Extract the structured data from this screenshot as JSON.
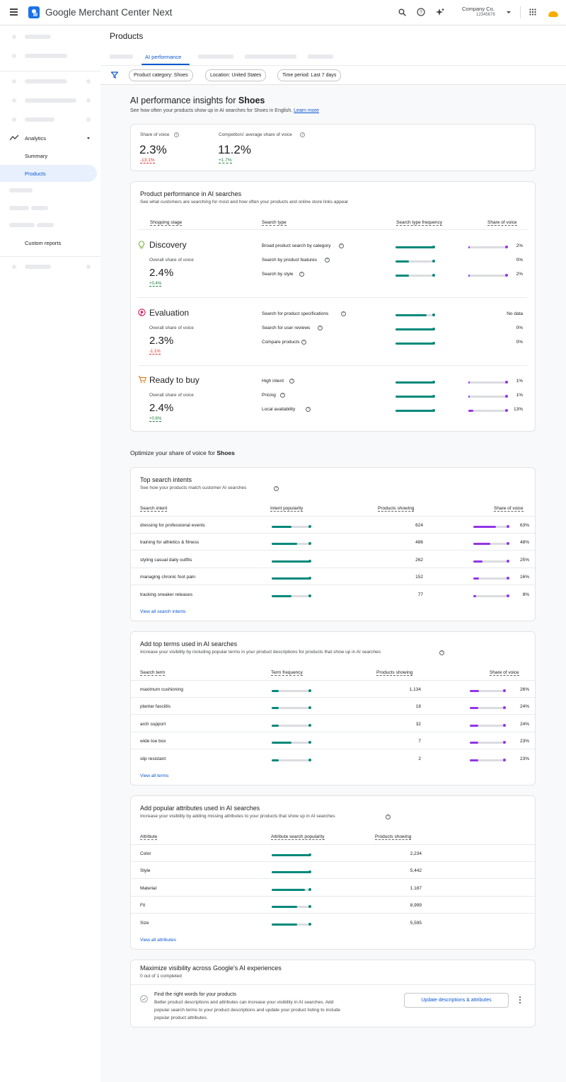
{
  "header": {
    "app_name": "Google Merchant Center Next",
    "company": "Company Co.",
    "account_id": "12345678"
  },
  "sidebar": {
    "analytics": "Analytics",
    "summary": "Summary",
    "products": "Products",
    "custom_reports": "Custom reports"
  },
  "page": {
    "title": "Products",
    "active_tab": "AI performance"
  },
  "filters": [
    "Product category: Shoes",
    "Location: United States",
    "Time period: Last 7 days"
  ],
  "insights": {
    "title_prefix": "AI performance insights for ",
    "category": "Shoes",
    "subtitle": "See how often your products show up in AI searches for Shoes in English.",
    "learn_more": "Learn more"
  },
  "summary": {
    "sov_label": "Share of voice",
    "sov_value": "2.3%",
    "sov_change": "-13.1%",
    "comp_label": "Competitors' average share of voice",
    "comp_value": "11.2%",
    "comp_change": "+1.7%"
  },
  "performance": {
    "title": "Product performance in AI searches",
    "subtitle": "See what customers are searching for most and how often your products and online store links appear",
    "headers": [
      "Shopping stage",
      "Search type",
      "Search type frequency",
      "Share of voice"
    ],
    "overall_label": "Overall share of voice",
    "stages": [
      {
        "name": "Discovery",
        "icon": "lightbulb-icon",
        "value": "2.4%",
        "change": "+0.4%",
        "rows": [
          {
            "type": "Broad product search by category",
            "freq": 1.0,
            "sov": 0.02,
            "sov_label": "2%"
          },
          {
            "type": "Search by product features",
            "freq": 0.35,
            "sov": null,
            "sov_label": "0%"
          },
          {
            "type": "Search by style",
            "freq": 0.35,
            "sov": 0.02,
            "sov_label": "2%"
          }
        ]
      },
      {
        "name": "Evaluation",
        "icon": "compare-icon",
        "value": "2.3%",
        "change": "-1.1%",
        "rows": [
          {
            "type": "Search for product specifications",
            "freq": 0.8,
            "sov": null,
            "sov_label": "No data"
          },
          {
            "type": "Search for user reviews",
            "freq": 1.0,
            "sov": null,
            "sov_label": "0%"
          },
          {
            "type": "Compare products",
            "freq": 1.0,
            "sov": null,
            "sov_label": "0%"
          }
        ]
      },
      {
        "name": "Ready to buy",
        "icon": "cart-icon",
        "value": "2.4%",
        "change": "+0.6%",
        "rows": [
          {
            "type": "High intent",
            "freq": 1.0,
            "sov": 0.01,
            "sov_label": "1%"
          },
          {
            "type": "Pricing",
            "freq": 1.0,
            "sov": 0.01,
            "sov_label": "1%"
          },
          {
            "type": "Local availability",
            "freq": 1.0,
            "sov": 0.13,
            "sov_label": "13%"
          }
        ]
      }
    ]
  },
  "optimize": {
    "prefix": "Optimize your share of voice for ",
    "category": "Shoes"
  },
  "intents": {
    "title": "Top search intents",
    "subtitle": "See how your products match customer AI searches",
    "headers": [
      "Search intent",
      "Intent popularity",
      "Products showing",
      "Share of voice"
    ],
    "rows": [
      {
        "name": "dressing for professional events",
        "pop": 0.5,
        "products": "624",
        "sov": 0.63,
        "sov_label": "63%"
      },
      {
        "name": "training for athletics & fitness",
        "pop": 0.65,
        "products": "486",
        "sov": 0.48,
        "sov_label": "48%"
      },
      {
        "name": "styling casual daily outfits",
        "pop": 1.0,
        "products": "262",
        "sov": 0.25,
        "sov_label": "25%"
      },
      {
        "name": "managing chronic foot pain",
        "pop": 1.0,
        "products": "152",
        "sov": 0.16,
        "sov_label": "16%"
      },
      {
        "name": "tracking sneaker releases",
        "pop": 0.5,
        "products": "77",
        "sov": 0.08,
        "sov_label": "8%"
      }
    ],
    "view_all": "View all search intents"
  },
  "terms": {
    "title": "Add top terms used in AI searches",
    "subtitle": "Increase your visibility by including popular terms in your product descriptions for products that show up in AI searches",
    "headers": [
      "Search term",
      "Term frequency",
      "Products showing",
      "Share of voice"
    ],
    "rows": [
      {
        "name": "maximum cushioning",
        "pop": 0.18,
        "products": "1,134",
        "sov": 0.26,
        "sov_label": "26%"
      },
      {
        "name": "plantar fasciitis",
        "pop": 0.18,
        "products": "18",
        "sov": 0.24,
        "sov_label": "24%"
      },
      {
        "name": "arch support",
        "pop": 0.18,
        "products": "32",
        "sov": 0.24,
        "sov_label": "24%"
      },
      {
        "name": "wide toe box",
        "pop": 0.5,
        "products": "7",
        "sov": 0.23,
        "sov_label": "23%"
      },
      {
        "name": "slip resistant",
        "pop": 0.18,
        "products": "2",
        "sov": 0.23,
        "sov_label": "23%"
      }
    ],
    "view_all": "View all terms"
  },
  "attributes": {
    "title": "Add popular attributes used in AI searches",
    "subtitle": "Increase your visibility by adding missing attributes to your products that show up in AI searches",
    "headers": [
      "Attribute",
      "Attribute search popularity",
      "Products showing"
    ],
    "rows": [
      {
        "name": "Color",
        "pop": 1.0,
        "products": "2,234"
      },
      {
        "name": "Style",
        "pop": 1.0,
        "products": "5,442"
      },
      {
        "name": "Material",
        "pop": 0.85,
        "products": "1.187"
      },
      {
        "name": "Fit",
        "pop": 0.65,
        "products": "8,999"
      },
      {
        "name": "Size",
        "pop": 0.65,
        "products": "5,595"
      }
    ],
    "view_all": "View all attributes"
  },
  "maximize": {
    "title": "Maximize visibility across Google's AI experiences",
    "progress": "0 out of 1 completed",
    "task_title": "Find the right words for your products",
    "task_desc_1": "Better product descriptions and attributes can increase your visibility in AI searches. Add",
    "task_desc_2": "popular search terms to your product descriptions and update your product listing to include",
    "task_desc_3": "popular product attributes.",
    "button": "Update descriptions & attributes"
  }
}
